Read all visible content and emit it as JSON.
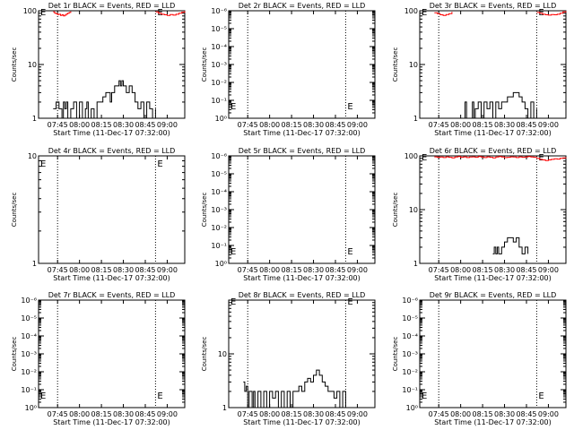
{
  "page": {
    "x_ticks": [
      "07:45",
      "08:00",
      "08:15",
      "08:30",
      "08:45",
      "09:00"
    ],
    "x_axis_title": "Start Time (11-Dec-17 07:32:00)",
    "y_axis_title": "Counts/sec",
    "colors": {
      "events": "#000000",
      "lld": "#ff0000",
      "axis": "#000000"
    }
  },
  "chart_data": [
    {
      "type": "line",
      "title": "Det 1r BLACK = Events, RED = LLD",
      "ylog": true,
      "ylim": [
        1,
        100
      ],
      "yticks": [
        {
          "v": 1,
          "label": "1"
        },
        {
          "v": 10,
          "label": "10"
        },
        {
          "v": 100,
          "label": "100"
        }
      ],
      "time_range_minutes": [
        0,
        100
      ],
      "guide_lines_minutes": [
        13,
        80
      ],
      "marker_label": "E",
      "series": [
        {
          "color": "#000000",
          "x": [
            10,
            12,
            13,
            14,
            16,
            17,
            18,
            19,
            20,
            22,
            24,
            26,
            28,
            30,
            32,
            33,
            34,
            36,
            38,
            40,
            42,
            44,
            46,
            48,
            49,
            50,
            52,
            54,
            55,
            56,
            57,
            58,
            60,
            62,
            64,
            66,
            68,
            70,
            72,
            74,
            76,
            78,
            80
          ],
          "y": [
            1.5,
            2,
            2,
            1.5,
            1,
            2,
            1.5,
            2,
            1,
            1.5,
            2,
            1,
            2,
            1,
            1.5,
            2,
            1,
            1.5,
            1,
            2,
            2,
            2.5,
            3,
            3,
            2,
            3,
            4,
            4,
            5,
            4,
            5,
            4,
            3,
            4,
            3,
            2,
            1.5,
            2,
            1,
            2,
            1.5,
            1,
            1.5
          ]
        },
        {
          "color": "#ff0000",
          "x": [
            10,
            11,
            12,
            13,
            14,
            15,
            16,
            17,
            18,
            19,
            20,
            21,
            22
          ],
          "y": [
            95,
            90,
            88,
            85,
            86,
            82,
            84,
            80,
            83,
            87,
            90,
            93,
            97
          ]
        },
        {
          "color": "#ff0000",
          "x": [
            80,
            82,
            84,
            86,
            88,
            90,
            92,
            94,
            96,
            98,
            100
          ],
          "y": [
            95,
            90,
            86,
            84,
            82,
            85,
            83,
            86,
            90,
            94,
            98
          ]
        }
      ]
    },
    {
      "type": "line",
      "title": "Det 2r BLACK = Events, RED = LLD",
      "ylog": true,
      "ylim": [
        1,
        1000000
      ],
      "yticks": [
        {
          "v": 1,
          "label": "10⁰"
        },
        {
          "v": 10,
          "label": "10⁻¹"
        },
        {
          "v": 100,
          "label": "10⁻²"
        },
        {
          "v": 1000,
          "label": "10⁻³"
        },
        {
          "v": 10000,
          "label": "10⁻⁴"
        },
        {
          "v": 100000,
          "label": "10⁻⁵"
        },
        {
          "v": 1000000,
          "label": "10⁻⁶"
        }
      ],
      "time_range_minutes": [
        0,
        100
      ],
      "guide_lines_minutes": [
        13,
        80
      ],
      "marker_label": "E",
      "series": []
    },
    {
      "type": "line",
      "title": "Det 3r BLACK = Events, RED = LLD",
      "ylog": true,
      "ylim": [
        1,
        100
      ],
      "yticks": [
        {
          "v": 1,
          "label": "1"
        },
        {
          "v": 10,
          "label": "10"
        },
        {
          "v": 100,
          "label": "100"
        }
      ],
      "time_range_minutes": [
        0,
        100
      ],
      "guide_lines_minutes": [
        13,
        80
      ],
      "marker_label": "E",
      "series": [
        {
          "color": "#000000",
          "x": [
            30,
            31,
            32,
            34,
            36,
            37,
            38,
            40,
            42,
            44,
            46,
            48,
            50,
            52,
            54,
            56,
            58,
            60,
            62,
            64,
            66,
            68,
            70,
            72,
            74,
            76,
            78,
            80
          ],
          "y": [
            1,
            2,
            1,
            1,
            2,
            1,
            1.5,
            2,
            1,
            2,
            1.5,
            2,
            1,
            2,
            1.5,
            2,
            2,
            2.5,
            2.5,
            3,
            3,
            2.5,
            2,
            1.5,
            1,
            2,
            1,
            1.5
          ]
        },
        {
          "color": "#ff0000",
          "x": [
            10,
            12,
            14,
            16,
            18,
            20,
            22
          ],
          "y": [
            92,
            88,
            84,
            82,
            85,
            88,
            95
          ]
        },
        {
          "color": "#ff0000",
          "x": [
            80,
            82,
            84,
            86,
            88,
            90,
            92,
            94,
            96,
            98,
            100
          ],
          "y": [
            93,
            90,
            86,
            84,
            83,
            85,
            84,
            86,
            90,
            95,
            98
          ]
        }
      ]
    },
    {
      "type": "line",
      "title": "Det 4r BLACK = Events, RED = LLD",
      "ylog": true,
      "ylim": [
        1,
        10
      ],
      "yticks": [
        {
          "v": 1,
          "label": "1"
        },
        {
          "v": 10,
          "label": "10"
        }
      ],
      "time_range_minutes": [
        0,
        100
      ],
      "guide_lines_minutes": [
        13,
        80
      ],
      "marker_label": "E",
      "series": []
    },
    {
      "type": "line",
      "title": "Det 5r BLACK = Events, RED = LLD",
      "ylog": true,
      "ylim": [
        1,
        1000000
      ],
      "yticks": [
        {
          "v": 1,
          "label": "10⁰"
        },
        {
          "v": 10,
          "label": "10⁻¹"
        },
        {
          "v": 100,
          "label": "10⁻²"
        },
        {
          "v": 1000,
          "label": "10⁻³"
        },
        {
          "v": 10000,
          "label": "10⁻⁴"
        },
        {
          "v": 100000,
          "label": "10⁻⁵"
        },
        {
          "v": 1000000,
          "label": "10⁻⁶"
        }
      ],
      "time_range_minutes": [
        0,
        100
      ],
      "guide_lines_minutes": [
        13,
        80
      ],
      "marker_label": "E",
      "series": []
    },
    {
      "type": "line",
      "title": "Det 6r BLACK = Events, RED = LLD",
      "ylog": true,
      "ylim": [
        1,
        100
      ],
      "yticks": [
        {
          "v": 1,
          "label": "1"
        },
        {
          "v": 10,
          "label": "10"
        },
        {
          "v": 100,
          "label": "100"
        }
      ],
      "time_range_minutes": [
        0,
        100
      ],
      "guide_lines_minutes": [
        13,
        80
      ],
      "marker_label": "E",
      "series": [
        {
          "color": "#000000",
          "x": [
            50,
            51,
            52,
            53,
            54,
            56,
            58,
            60,
            62,
            64,
            66,
            68,
            70,
            72,
            74
          ],
          "y": [
            1.5,
            2,
            1.5,
            2,
            1.5,
            2,
            2.5,
            3,
            3,
            2.5,
            3,
            2,
            1.5,
            2,
            1.5
          ]
        },
        {
          "color": "#ff0000",
          "x": [
            10,
            12,
            14,
            16,
            18,
            20,
            22,
            24,
            26,
            28,
            30,
            32,
            34,
            36,
            38,
            40,
            42,
            44,
            46,
            48,
            50,
            52,
            54,
            56,
            58,
            60,
            62,
            64,
            66,
            68,
            70,
            72,
            74,
            76,
            78,
            80
          ],
          "y": [
            96,
            94,
            95,
            93,
            96,
            94,
            92,
            95,
            97,
            94,
            96,
            93,
            95,
            96,
            94,
            97,
            95,
            93,
            96,
            94,
            92,
            95,
            97,
            95,
            93,
            94,
            96,
            95,
            93,
            96,
            94,
            95,
            97,
            95,
            94,
            96
          ]
        },
        {
          "color": "#ff0000",
          "x": [
            80,
            82,
            84,
            86,
            88,
            90,
            92,
            94,
            96,
            98,
            100
          ],
          "y": [
            90,
            86,
            84,
            82,
            84,
            86,
            88,
            87,
            90,
            92,
            94
          ]
        }
      ]
    },
    {
      "type": "line",
      "title": "Det 7r BLACK = Events, RED = LLD",
      "ylog": true,
      "ylim": [
        1,
        1000000
      ],
      "yticks": [
        {
          "v": 1,
          "label": "10⁰"
        },
        {
          "v": 10,
          "label": "10⁻¹"
        },
        {
          "v": 100,
          "label": "10⁻²"
        },
        {
          "v": 1000,
          "label": "10⁻³"
        },
        {
          "v": 10000,
          "label": "10⁻⁴"
        },
        {
          "v": 100000,
          "label": "10⁻⁵"
        },
        {
          "v": 1000000,
          "label": "10⁻⁶"
        }
      ],
      "time_range_minutes": [
        0,
        100
      ],
      "guide_lines_minutes": [
        13,
        80
      ],
      "marker_label": "E",
      "series": []
    },
    {
      "type": "line",
      "title": "Det 8r BLACK = Events, RED = LLD",
      "ylog": true,
      "ylim": [
        1,
        100
      ],
      "yticks": [
        {
          "v": 1,
          "label": "1"
        },
        {
          "v": 10,
          "label": "10"
        }
      ],
      "time_range_minutes": [
        0,
        100
      ],
      "guide_lines_minutes": [
        13,
        80
      ],
      "marker_label": "E",
      "series": [
        {
          "color": "#000000",
          "x": [
            10,
            11,
            12,
            13,
            14,
            16,
            17,
            18,
            20,
            22,
            24,
            26,
            28,
            30,
            32,
            34,
            36,
            38,
            40,
            42,
            44,
            46,
            48,
            50,
            52,
            54,
            56,
            58,
            60,
            62,
            64,
            66,
            68,
            70,
            72,
            74,
            76,
            78,
            80
          ],
          "y": [
            3,
            2,
            2.5,
            1,
            2,
            1,
            2,
            1,
            2,
            1,
            2,
            1,
            2,
            1.5,
            2,
            1,
            2,
            1,
            2,
            1,
            2,
            2,
            2.5,
            2,
            3,
            3.5,
            3,
            4,
            5,
            4,
            3,
            2.5,
            2,
            2,
            1.5,
            2,
            1,
            2,
            1
          ]
        }
      ]
    },
    {
      "type": "line",
      "title": "Det 9r BLACK = Events, RED = LLD",
      "ylog": true,
      "ylim": [
        1,
        1000000
      ],
      "yticks": [
        {
          "v": 1,
          "label": "10⁰"
        },
        {
          "v": 10,
          "label": "10⁻¹"
        },
        {
          "v": 100,
          "label": "10⁻²"
        },
        {
          "v": 1000,
          "label": "10⁻³"
        },
        {
          "v": 10000,
          "label": "10⁻⁴"
        },
        {
          "v": 100000,
          "label": "10⁻⁵"
        },
        {
          "v": 1000000,
          "label": "10⁻⁶"
        }
      ],
      "time_range_minutes": [
        0,
        100
      ],
      "guide_lines_minutes": [
        13,
        80
      ],
      "marker_label": "E",
      "series": []
    }
  ]
}
